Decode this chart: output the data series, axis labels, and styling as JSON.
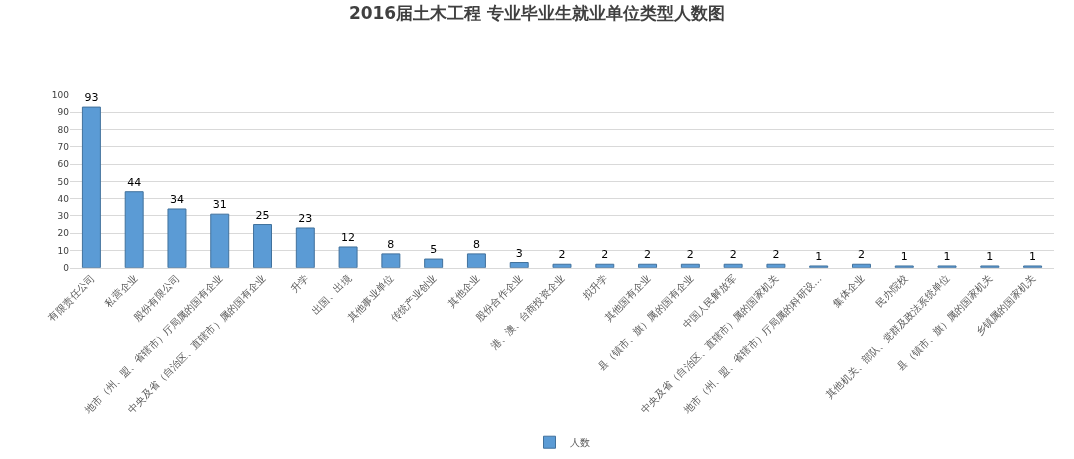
{
  "chart_data": {
    "type": "bar",
    "title": "2016届土木工程 专业毕业生就业单位类型人数图",
    "categories": [
      "有限责任公司",
      "私营企业",
      "股份有限公司",
      "地市（州、盟、省辖市）厅局属的国有企业",
      "中央及省（自治区、直辖市）属的国有企业",
      "升学",
      "出国、出境",
      "其他事业单位",
      "传统产业创业",
      "其他企业",
      "股份合作企业",
      "港、澳、台商投资企业",
      "拟升学",
      "其他国有企业",
      "县（镇市、旗）属的国有企业",
      "中国人民解放军",
      "中央及省（自治区、直辖市）属的国家机关",
      "地市（州、盟、省辖市）厅局属的科研设…",
      "集体企业",
      "民办院校",
      "其他机关、部队、党群及政法系统单位",
      "县（镇市、旗）属的国家机关",
      "乡镇属的国家机关"
    ],
    "series": [
      {
        "name": "人数",
        "color": "#5b9bd5",
        "values": [
          93,
          44,
          34,
          31,
          25,
          23,
          12,
          8,
          5,
          8,
          3,
          2,
          2,
          2,
          2,
          2,
          2,
          1,
          2,
          1,
          1,
          1,
          1
        ]
      }
    ],
    "ylim": [
      0,
      100
    ],
    "yticks": [
      0,
      10,
      20,
      30,
      40,
      50,
      60,
      70,
      80,
      90,
      100
    ],
    "grid": "y",
    "legend": "bottom",
    "data_labels": true
  }
}
